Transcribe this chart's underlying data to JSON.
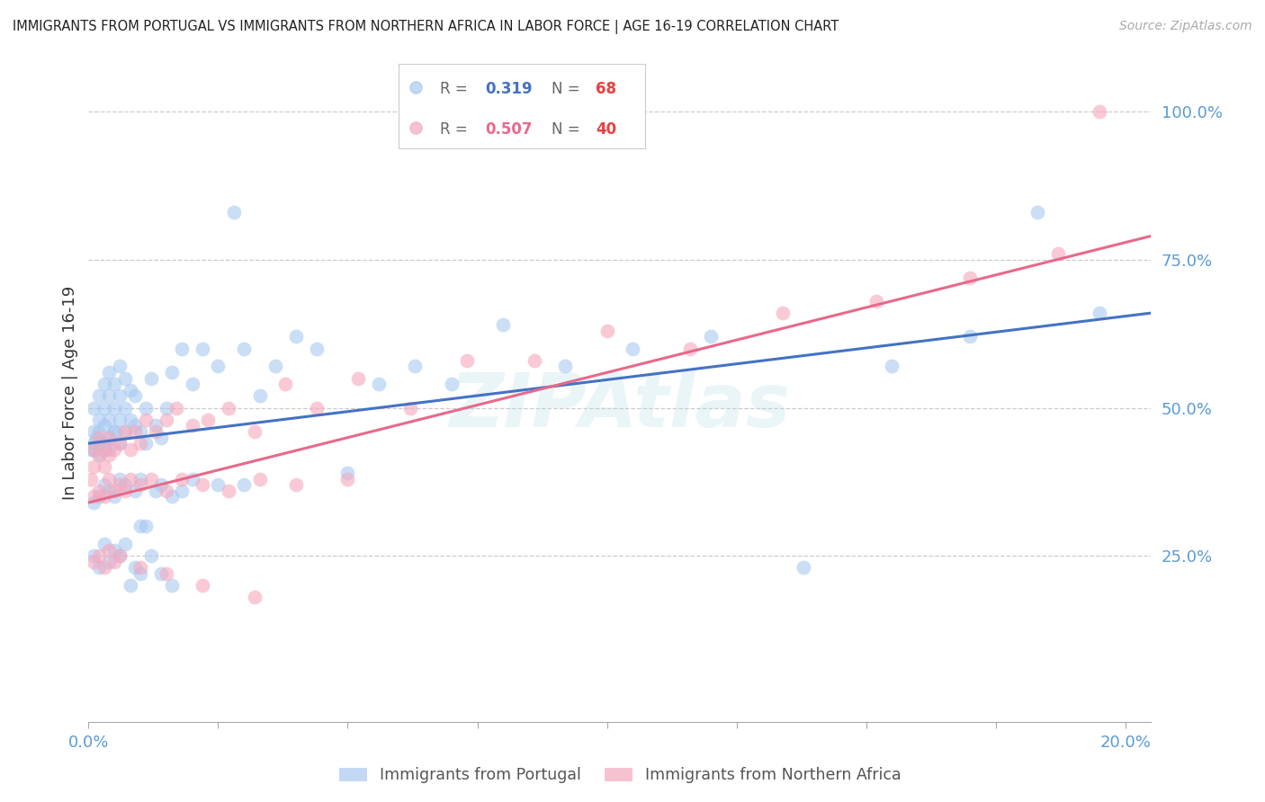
{
  "title": "IMMIGRANTS FROM PORTUGAL VS IMMIGRANTS FROM NORTHERN AFRICA IN LABOR FORCE | AGE 16-19 CORRELATION CHART",
  "source": "Source: ZipAtlas.com",
  "ylabel": "In Labor Force | Age 16-19",
  "xlim": [
    0.0,
    0.205
  ],
  "ylim": [
    -0.03,
    1.08
  ],
  "blue_color": "#A8C8F0",
  "pink_color": "#F5A8BC",
  "blue_line_color": "#4472C4",
  "pink_line_color": "#E8698A",
  "right_axis_color": "#5B9BD5",
  "watermark": "ZIPAtlas",
  "portugal_x": [
    0.0005,
    0.001,
    0.001,
    0.001,
    0.001,
    0.0015,
    0.002,
    0.002,
    0.002,
    0.002,
    0.002,
    0.003,
    0.003,
    0.003,
    0.003,
    0.003,
    0.004,
    0.004,
    0.004,
    0.004,
    0.004,
    0.005,
    0.005,
    0.005,
    0.005,
    0.006,
    0.006,
    0.006,
    0.006,
    0.007,
    0.007,
    0.007,
    0.008,
    0.008,
    0.009,
    0.009,
    0.01,
    0.01,
    0.011,
    0.011,
    0.012,
    0.013,
    0.014,
    0.015,
    0.016,
    0.018,
    0.02,
    0.022,
    0.025,
    0.028,
    0.03,
    0.033,
    0.036,
    0.04,
    0.044,
    0.05,
    0.056,
    0.063,
    0.07,
    0.08,
    0.092,
    0.105,
    0.12,
    0.138,
    0.155,
    0.17,
    0.183,
    0.195
  ],
  "portugal_y": [
    0.43,
    0.44,
    0.46,
    0.5,
    0.43,
    0.45,
    0.44,
    0.46,
    0.48,
    0.52,
    0.42,
    0.44,
    0.47,
    0.5,
    0.54,
    0.43,
    0.45,
    0.48,
    0.52,
    0.56,
    0.43,
    0.46,
    0.5,
    0.54,
    0.46,
    0.44,
    0.48,
    0.52,
    0.57,
    0.46,
    0.5,
    0.55,
    0.48,
    0.53,
    0.47,
    0.52,
    0.3,
    0.46,
    0.44,
    0.5,
    0.55,
    0.47,
    0.45,
    0.5,
    0.56,
    0.6,
    0.54,
    0.6,
    0.57,
    0.83,
    0.6,
    0.52,
    0.57,
    0.62,
    0.6,
    0.39,
    0.54,
    0.57,
    0.54,
    0.64,
    0.57,
    0.6,
    0.62,
    0.23,
    0.57,
    0.62,
    0.83,
    0.66
  ],
  "portugal_low_x": [
    0.001,
    0.002,
    0.003,
    0.004,
    0.005,
    0.006,
    0.007,
    0.009,
    0.01,
    0.011,
    0.013,
    0.014,
    0.016,
    0.018,
    0.02,
    0.025,
    0.03
  ],
  "portugal_low_y": [
    0.34,
    0.35,
    0.37,
    0.36,
    0.35,
    0.38,
    0.37,
    0.36,
    0.38,
    0.3,
    0.36,
    0.37,
    0.35,
    0.36,
    0.38,
    0.37,
    0.37
  ],
  "portugal_vlow_x": [
    0.001,
    0.002,
    0.003,
    0.004,
    0.005,
    0.006,
    0.007,
    0.008,
    0.009,
    0.01,
    0.012,
    0.014,
    0.016
  ],
  "portugal_vlow_y": [
    0.25,
    0.23,
    0.27,
    0.24,
    0.26,
    0.25,
    0.27,
    0.2,
    0.23,
    0.22,
    0.25,
    0.22,
    0.2
  ],
  "n_africa_x": [
    0.0005,
    0.001,
    0.001,
    0.002,
    0.002,
    0.003,
    0.003,
    0.004,
    0.004,
    0.005,
    0.006,
    0.007,
    0.008,
    0.009,
    0.01,
    0.011,
    0.013,
    0.015,
    0.017,
    0.02,
    0.023,
    0.027,
    0.032,
    0.038,
    0.044,
    0.052,
    0.062,
    0.073,
    0.086,
    0.1,
    0.116,
    0.134,
    0.152,
    0.17,
    0.187,
    0.195
  ],
  "n_africa_y": [
    0.38,
    0.4,
    0.43,
    0.42,
    0.45,
    0.4,
    0.43,
    0.42,
    0.45,
    0.43,
    0.44,
    0.46,
    0.43,
    0.46,
    0.44,
    0.48,
    0.46,
    0.48,
    0.5,
    0.47,
    0.48,
    0.5,
    0.46,
    0.54,
    0.5,
    0.55,
    0.5,
    0.58,
    0.58,
    0.63,
    0.6,
    0.66,
    0.68,
    0.72,
    0.76,
    1.0
  ],
  "n_africa_low_x": [
    0.001,
    0.002,
    0.003,
    0.004,
    0.005,
    0.006,
    0.007,
    0.008,
    0.01,
    0.012,
    0.015,
    0.018,
    0.022,
    0.027,
    0.033,
    0.04,
    0.05
  ],
  "n_africa_low_y": [
    0.35,
    0.36,
    0.35,
    0.38,
    0.36,
    0.37,
    0.36,
    0.38,
    0.37,
    0.38,
    0.36,
    0.38,
    0.37,
    0.36,
    0.38,
    0.37,
    0.38
  ],
  "n_africa_vlow_x": [
    0.001,
    0.002,
    0.003,
    0.004,
    0.005,
    0.006,
    0.01,
    0.015,
    0.022,
    0.032
  ],
  "n_africa_vlow_y": [
    0.24,
    0.25,
    0.23,
    0.26,
    0.24,
    0.25,
    0.23,
    0.22,
    0.2,
    0.18
  ],
  "blue_line_x0": 0.0,
  "blue_line_x1": 0.205,
  "blue_line_y0": 0.44,
  "blue_line_y1": 0.66,
  "pink_line_x0": 0.0,
  "pink_line_x1": 0.205,
  "pink_line_y0": 0.34,
  "pink_line_y1": 0.79
}
